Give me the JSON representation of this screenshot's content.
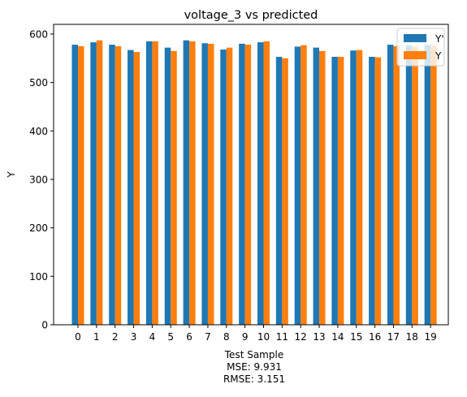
{
  "chart_data": {
    "type": "bar",
    "title": "voltage_3 vs predicted",
    "xlabel": "Test Sample",
    "ylabel": "Y",
    "x_sublabels": [
      "MSE: 9.931",
      "RMSE: 3.151"
    ],
    "categories": [
      "0",
      "1",
      "2",
      "3",
      "4",
      "5",
      "6",
      "7",
      "8",
      "9",
      "10",
      "11",
      "12",
      "13",
      "14",
      "15",
      "16",
      "17",
      "18",
      "19"
    ],
    "ylim": [
      0,
      620
    ],
    "yticks": [
      0,
      100,
      200,
      300,
      400,
      500,
      600
    ],
    "grid": false,
    "legend_position": "top-right",
    "series": [
      {
        "name": "Y'",
        "color": "#1f77b4",
        "values": [
          578,
          583,
          578,
          567,
          585,
          572,
          587,
          581,
          568,
          580,
          583,
          553,
          574,
          572,
          553,
          566,
          553,
          578,
          577,
          578
        ]
      },
      {
        "name": "Y",
        "color": "#ff7f0e",
        "values": [
          575,
          587,
          575,
          563,
          585,
          565,
          585,
          580,
          572,
          578,
          585,
          550,
          577,
          565,
          553,
          567,
          552,
          575,
          574,
          576
        ]
      }
    ]
  }
}
